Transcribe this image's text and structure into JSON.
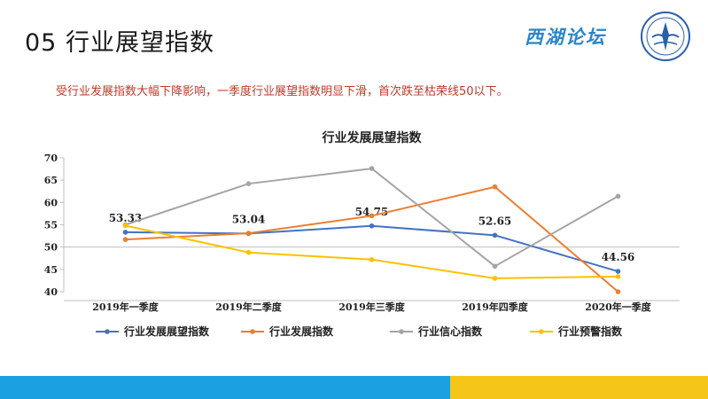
{
  "page": {
    "title": "05 行业展望指数",
    "brand": "西湖论坛",
    "subtitle": "受行业发展指数大幅下降影响，一季度行业展望指数明显下滑，首次跌至枯荣线50以下。",
    "colors": {
      "footer_blue": "#1ba1e2",
      "footer_yellow": "#f5c518",
      "subtitle": "#c0392b",
      "brand": "#2a86c9"
    }
  },
  "chart_data": {
    "type": "line",
    "title": "行业发展展望指数",
    "categories": [
      "2019年一季度",
      "2019年二季度",
      "2019年三季度",
      "2019年四季度",
      "2020年一季度"
    ],
    "ylim": [
      40,
      70
    ],
    "yticks": [
      40,
      45,
      50,
      55,
      60,
      65,
      70
    ],
    "legend_position": "bottom",
    "series": [
      {
        "name": "行业发展展望指数",
        "color": "#4472c4",
        "values": [
          53.33,
          53.04,
          54.75,
          52.65,
          44.56
        ],
        "data_labels": [
          "53.33",
          "53.04",
          "54.75",
          "52.65",
          "44.56"
        ]
      },
      {
        "name": "行业发展指数",
        "color": "#ed7d31",
        "values": [
          51.7,
          53.1,
          57.0,
          63.5,
          40.0
        ]
      },
      {
        "name": "行业信心指数",
        "color": "#a5a5a5",
        "values": [
          55.0,
          64.2,
          67.6,
          45.7,
          61.4
        ]
      },
      {
        "name": "行业预警指数",
        "color": "#ffc000",
        "values": [
          54.8,
          48.8,
          47.2,
          43.0,
          43.4
        ]
      }
    ]
  }
}
